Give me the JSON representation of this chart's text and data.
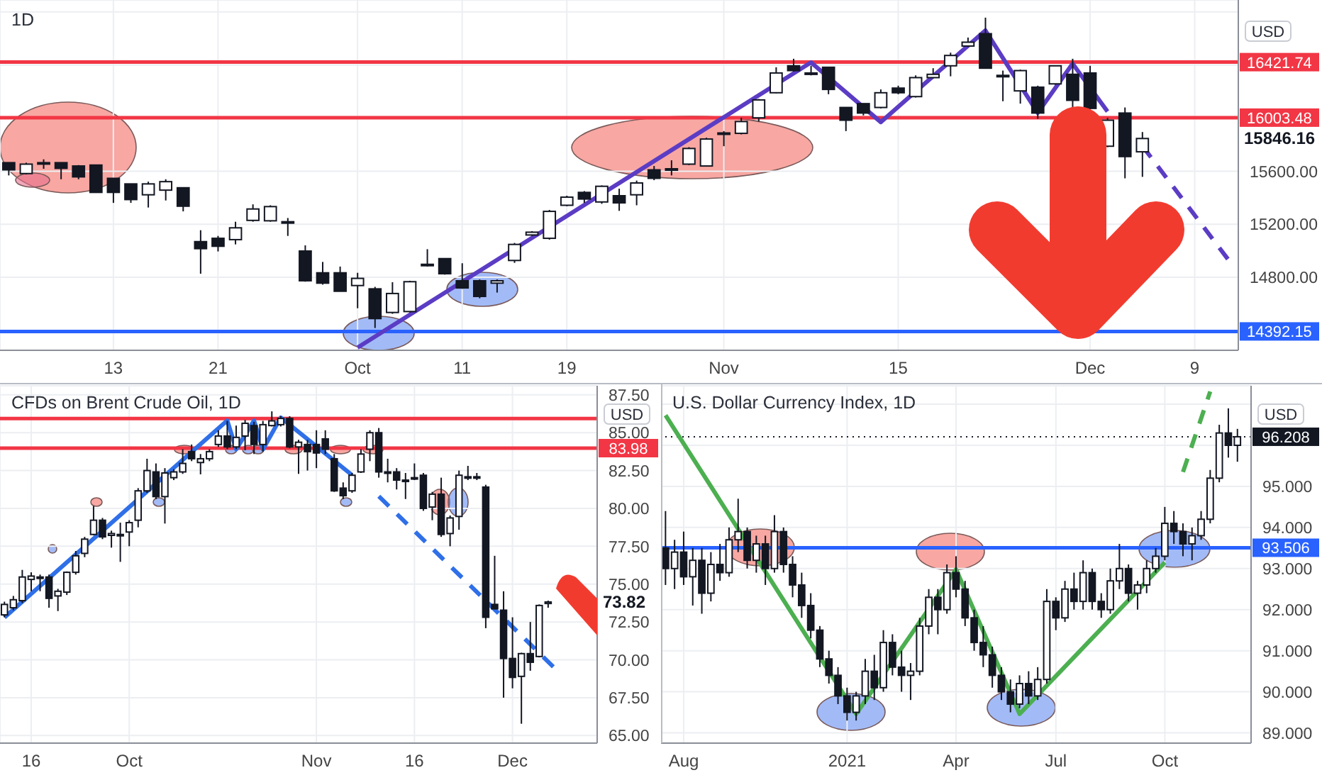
{
  "chart_data": [
    {
      "type": "candlestick",
      "title": "1D",
      "categories": [
        null,
        null,
        null,
        null,
        null,
        null,
        "13",
        null,
        null,
        null,
        null,
        null,
        "21",
        null,
        null,
        null,
        null,
        null,
        null,
        null,
        "Oct",
        null,
        null,
        null,
        null,
        null,
        "11",
        null,
        null,
        null,
        null,
        null,
        "19",
        null,
        null,
        null,
        null,
        null,
        null,
        null,
        null,
        "Nov",
        null,
        null,
        null,
        null,
        null,
        null,
        null,
        null,
        null,
        "15",
        null,
        null,
        null,
        null,
        null,
        null,
        null,
        null,
        null,
        null,
        "Dec",
        null,
        null,
        null,
        null,
        null,
        "9",
        null,
        null
      ],
      "ohlc": [
        [
          15664,
          15664,
          15568,
          15610
        ],
        [
          15582,
          15664,
          15575,
          15653
        ],
        [
          15664,
          15689,
          15618,
          15657
        ],
        [
          15664,
          15664,
          15539,
          15621
        ],
        [
          15639,
          15646,
          15539,
          15557
        ],
        [
          15646,
          15646,
          15440,
          15440
        ],
        [
          15546,
          15546,
          15361,
          15440
        ],
        [
          15504,
          15504,
          15361,
          15386
        ],
        [
          15422,
          15521,
          15326,
          15504
        ],
        [
          15457,
          15539,
          15379,
          15521
        ],
        [
          15475,
          15475,
          15297,
          15336
        ],
        [
          15069,
          15155,
          14827,
          15016
        ],
        [
          15094,
          15112,
          14995,
          15034
        ],
        [
          15084,
          15219,
          15048,
          15173
        ],
        [
          15229,
          15350,
          15219,
          15315
        ],
        [
          15226,
          15343,
          15219,
          15333
        ],
        [
          15219,
          15247,
          15112,
          15215
        ],
        [
          14998,
          15041,
          14767,
          14774
        ],
        [
          14834,
          14916,
          14745,
          14756
        ],
        [
          14834,
          14881,
          14695,
          14695
        ],
        [
          14738,
          14834,
          14567,
          14792
        ],
        [
          14713,
          14728,
          14418,
          14489
        ],
        [
          14535,
          14763,
          14525,
          14678
        ],
        [
          14542,
          14774,
          14535,
          14767
        ],
        [
          14898,
          15012,
          14881,
          14895
        ],
        [
          14941,
          14941,
          14820,
          14827
        ],
        [
          14774,
          14906,
          14713,
          14720
        ],
        [
          14774,
          14784,
          14642,
          14656
        ],
        [
          14756,
          14784,
          14685,
          14774
        ],
        [
          14927,
          15059,
          14909,
          15048
        ],
        [
          15119,
          15148,
          15112,
          15140
        ],
        [
          15094,
          15308,
          15084,
          15297
        ],
        [
          15343,
          15415,
          15336,
          15404
        ],
        [
          15440,
          15450,
          15361,
          15390
        ],
        [
          15368,
          15493,
          15354,
          15486
        ],
        [
          15415,
          15468,
          15301,
          15361
        ],
        [
          15422,
          15529,
          15343,
          15511
        ],
        [
          15610,
          15639,
          15532,
          15546
        ],
        [
          15618,
          15682,
          15568,
          15615
        ],
        [
          15653,
          15781,
          15646,
          15771
        ],
        [
          15639,
          15852,
          15639,
          15842
        ],
        [
          15888,
          15902,
          15788,
          15885
        ],
        [
          15885,
          16002,
          15877,
          15974
        ],
        [
          16002,
          16144,
          15974,
          16137
        ],
        [
          16191,
          16383,
          16187,
          16340
        ],
        [
          16394,
          16447,
          16351,
          16358
        ],
        [
          16340,
          16394,
          16322,
          16336
        ],
        [
          16383,
          16383,
          16180,
          16216
        ],
        [
          16080,
          16080,
          15902,
          15984
        ],
        [
          16109,
          16109,
          16020,
          16038
        ],
        [
          16080,
          16216,
          16073,
          16191
        ],
        [
          16226,
          16244,
          16180,
          16191
        ],
        [
          16162,
          16322,
          16155,
          16305
        ],
        [
          16305,
          16376,
          16305,
          16330
        ],
        [
          16394,
          16493,
          16315,
          16472
        ],
        [
          16543,
          16607,
          16536,
          16572
        ],
        [
          16636,
          16757,
          16376,
          16376
        ],
        [
          16322,
          16358,
          16127,
          16318
        ],
        [
          16205,
          16365,
          16109,
          16358
        ],
        [
          16233,
          16244,
          15995,
          16038
        ],
        [
          16258,
          16394,
          16251,
          16394
        ],
        [
          16330,
          16447,
          16080,
          16134
        ],
        [
          16340,
          16394,
          16066,
          16073
        ],
        [
          15788,
          16002,
          15781,
          15984
        ],
        [
          16038,
          16080,
          15546,
          15710
        ],
        [
          15746,
          15895,
          15557,
          15846.16
        ],
        null,
        null,
        null,
        null,
        null
      ],
      "series": [
        {
          "type": "line",
          "color": "#5b3cc4",
          "values": [
            null,
            null,
            null,
            null,
            null,
            null,
            null,
            null,
            null,
            null,
            null,
            null,
            null,
            null,
            null,
            null,
            null,
            null,
            null,
            null,
            14270,
            null,
            null,
            null,
            null,
            null,
            null,
            null,
            null,
            null,
            null,
            null,
            null,
            null,
            null,
            null,
            null,
            null,
            null,
            null,
            null,
            null,
            null,
            null,
            null,
            null,
            16420,
            null,
            null,
            null,
            15970,
            null,
            null,
            null,
            null,
            null,
            16660,
            null,
            null,
            16040,
            null,
            16410,
            null,
            16050,
            null,
            null,
            null,
            null,
            null,
            null,
            null
          ]
        },
        {
          "type": "line",
          "color": "#5b3cc4",
          "line_style": "dashed",
          "values": [
            null,
            null,
            null,
            null,
            null,
            null,
            null,
            null,
            null,
            null,
            null,
            null,
            null,
            null,
            null,
            null,
            null,
            null,
            null,
            null,
            null,
            null,
            null,
            null,
            null,
            null,
            null,
            null,
            null,
            null,
            null,
            null,
            null,
            null,
            null,
            null,
            null,
            null,
            null,
            null,
            null,
            null,
            null,
            null,
            null,
            null,
            null,
            null,
            null,
            null,
            null,
            null,
            null,
            null,
            null,
            null,
            null,
            null,
            null,
            null,
            null,
            null,
            null,
            null,
            null,
            15790,
            null,
            null,
            null,
            null,
            14920
          ]
        }
      ],
      "ylim": [
        14250,
        16890
      ],
      "yticks": [
        {
          "value": 14400,
          "label": null
        },
        {
          "value": 14800,
          "label": "14800.00"
        },
        {
          "value": 15200,
          "label": "15200.00"
        },
        {
          "value": 15600,
          "label": "15600.00"
        },
        {
          "value": 16000,
          "label": null
        },
        {
          "value": 16400,
          "label": null
        },
        {
          "value": 16800,
          "label": null
        }
      ],
      "ref_lines": [
        {
          "axis": "y",
          "value": 16421.74,
          "label": "16421.74",
          "color": "#f23645"
        },
        {
          "axis": "y",
          "value": 16003.48,
          "label": "16003.48",
          "color": "#f23645"
        },
        {
          "axis": "y",
          "value": 14392.15,
          "label": "14392.15",
          "color": "#2962ff"
        }
      ],
      "annotations": [
        "USD",
        "15846.16"
      ],
      "grid": true
    },
    {
      "type": "candlestick",
      "title": "CFDs on Brent Crude Oil, 1D",
      "categories": [
        null,
        null,
        null,
        "16",
        null,
        null,
        null,
        null,
        null,
        null,
        null,
        null,
        null,
        null,
        "Oct",
        null,
        null,
        null,
        null,
        null,
        null,
        null,
        null,
        null,
        null,
        null,
        null,
        null,
        null,
        null,
        null,
        null,
        null,
        null,
        null,
        "Nov",
        null,
        null,
        null,
        null,
        null,
        null,
        null,
        null,
        null,
        null,
        "16",
        null,
        null,
        null,
        null,
        null,
        null,
        null,
        null,
        null,
        null,
        "Dec",
        null,
        null,
        null,
        null,
        null,
        null,
        null,
        null,
        null
      ],
      "ohlc": [
        [
          72.97,
          73.84,
          72.81,
          73.66
        ],
        [
          73.44,
          74.22,
          73.28,
          73.97
        ],
        [
          73.91,
          75.94,
          73.75,
          75.47
        ],
        [
          75.31,
          75.78,
          74.53,
          75.53
        ],
        [
          75.47,
          75.63,
          74.53,
          75.44
        ],
        [
          75.47,
          75.63,
          73.44,
          74.06
        ],
        [
          74.22,
          74.69,
          73.22,
          74.53
        ],
        [
          74.47,
          75.84,
          74.28,
          75.78
        ],
        [
          75.78,
          77.19,
          75.63,
          76.87
        ],
        [
          77.03,
          78.12,
          76.78,
          77.97
        ],
        [
          78.28,
          80.16,
          78.22,
          79.22
        ],
        [
          79.22,
          79.37,
          77.97,
          78.12
        ],
        [
          78.22,
          78.53,
          77.41,
          78.34
        ],
        [
          78.25,
          79.06,
          76.47,
          78.28
        ],
        [
          78.44,
          79.22,
          77.5,
          79.06
        ],
        [
          79.22,
          81.34,
          78.75,
          81.16
        ],
        [
          81.16,
          83.28,
          81.03,
          82.5
        ],
        [
          82.41,
          82.97,
          80.62,
          80.78
        ],
        [
          80.78,
          82.66,
          79.0,
          82.34
        ],
        [
          82.03,
          82.59,
          81.87,
          82.41
        ],
        [
          82.41,
          83.91,
          82.28,
          82.97
        ],
        [
          83.75,
          84.22,
          83.12,
          83.28
        ],
        [
          83.03,
          83.59,
          82.25,
          83.28
        ],
        [
          83.28,
          83.91,
          83.12,
          83.75
        ],
        [
          84.22,
          85.16,
          84.06,
          84.78
        ],
        [
          84.78,
          85.78,
          83.91,
          84.06
        ],
        [
          84.06,
          85.47,
          83.91,
          84.69
        ],
        [
          84.78,
          85.84,
          83.84,
          85.62
        ],
        [
          85.47,
          85.72,
          83.59,
          84.22
        ],
        [
          84.22,
          85.78,
          83.75,
          85.53
        ],
        [
          85.47,
          86.41,
          85.41,
          85.78
        ],
        [
          85.53,
          86.09,
          85.41,
          85.94
        ],
        [
          85.94,
          86.09,
          83.97,
          84.06
        ],
        [
          84.06,
          84.53,
          82.28,
          84.37
        ],
        [
          84.22,
          84.53,
          82.5,
          83.75
        ],
        [
          84.22,
          85.16,
          82.66,
          83.66
        ],
        [
          84.59,
          85.16,
          83.59,
          83.91
        ],
        [
          83.28,
          83.59,
          81.09,
          81.16
        ],
        [
          81.34,
          81.72,
          80.62,
          80.84
        ],
        [
          81.16,
          82.34,
          81.03,
          82.19
        ],
        [
          82.41,
          83.91,
          82.34,
          83.59
        ],
        [
          83.91,
          85.16,
          83.12,
          85.0
        ],
        [
          85.0,
          85.31,
          82.03,
          82.41
        ],
        [
          82.41,
          83.28,
          81.72,
          82.38
        ],
        [
          82.41,
          82.66,
          81.25,
          81.87
        ],
        [
          81.87,
          82.34,
          80.62,
          81.84
        ],
        [
          82.03,
          82.97,
          81.87,
          82.0
        ],
        [
          82.19,
          82.34,
          79.84,
          80.0
        ],
        [
          80.09,
          81.09,
          79.22,
          80.94
        ],
        [
          80.94,
          82.03,
          78.12,
          78.28
        ],
        [
          78.34,
          79.53,
          77.5,
          79.37
        ],
        [
          79.47,
          82.5,
          78.59,
          82.19
        ],
        [
          82.09,
          82.81,
          81.87,
          82.06
        ],
        [
          82.09,
          82.34,
          81.87,
          82.06
        ],
        [
          81.41,
          81.56,
          72.09,
          72.81
        ],
        [
          73.66,
          76.87,
          73.34,
          73.37
        ],
        [
          73.28,
          74.53,
          67.5,
          70.09
        ],
        [
          70.09,
          72.81,
          68.12,
          68.84
        ],
        [
          68.91,
          70.47,
          65.78,
          70.41
        ],
        [
          70.41,
          72.5,
          69.28,
          69.84
        ],
        [
          70.22,
          73.66,
          70.16,
          73.59
        ],
        [
          73.72,
          73.91,
          73.44,
          73.82
        ],
        null,
        null,
        null,
        null,
        null
      ],
      "series": [
        {
          "type": "line",
          "color": "#2f6fe8",
          "values": [
            72.8,
            null,
            null,
            null,
            null,
            null,
            null,
            null,
            null,
            null,
            null,
            null,
            null,
            null,
            null,
            null,
            null,
            null,
            null,
            null,
            null,
            null,
            null,
            null,
            null,
            85.8,
            83.9,
            null,
            85.8,
            83.9,
            null,
            86.0,
            null,
            null,
            null,
            null,
            null,
            null,
            null,
            82.2,
            null,
            null,
            null,
            null,
            null,
            null,
            null,
            null,
            null,
            null,
            null,
            null,
            null,
            null,
            null,
            null,
            null,
            null,
            null,
            null,
            null,
            null,
            null,
            null,
            null,
            null,
            null
          ]
        },
        {
          "type": "line",
          "color": "#2f6fe8",
          "line_style": "dashed",
          "values": [
            null,
            null,
            null,
            null,
            null,
            null,
            null,
            null,
            null,
            null,
            null,
            null,
            null,
            null,
            null,
            null,
            null,
            null,
            null,
            null,
            null,
            null,
            null,
            null,
            null,
            null,
            null,
            null,
            null,
            null,
            null,
            null,
            null,
            null,
            null,
            null,
            null,
            null,
            null,
            null,
            null,
            null,
            80.8,
            null,
            null,
            null,
            null,
            null,
            null,
            null,
            null,
            null,
            null,
            null,
            null,
            null,
            null,
            null,
            null,
            null,
            null,
            null,
            69.3,
            null,
            null,
            null,
            null
          ]
        }
      ],
      "ylim": [
        64.5,
        88.1
      ],
      "yticks": [
        {
          "value": 65,
          "label": "65.00"
        },
        {
          "value": 67.5,
          "label": "67.50"
        },
        {
          "value": 70,
          "label": "70.00"
        },
        {
          "value": 72.5,
          "label": "72.50"
        },
        {
          "value": 75,
          "label": "75.00"
        },
        {
          "value": 77.5,
          "label": "77.50"
        },
        {
          "value": 80,
          "label": "80.00"
        },
        {
          "value": 82.5,
          "label": "82.50"
        },
        {
          "value": 85,
          "label": "85.00"
        },
        {
          "value": 87.5,
          "label": "87.50"
        }
      ],
      "ref_lines": [
        {
          "axis": "y",
          "value": 85.94,
          "label": null,
          "color": "#f23645"
        },
        {
          "axis": "y",
          "value": 83.98,
          "label": "83.98",
          "color": "#f23645"
        }
      ],
      "annotations": [
        "USD",
        "73.82"
      ],
      "grid": true
    },
    {
      "type": "candlestick",
      "title": "U.S. Dollar Currency Index, 1D",
      "categories": [
        null,
        null,
        "Aug",
        null,
        null,
        null,
        null,
        null,
        null,
        null,
        null,
        null,
        null,
        null,
        null,
        null,
        null,
        null,
        null,
        null,
        "2021",
        null,
        null,
        null,
        null,
        null,
        null,
        null,
        null,
        null,
        null,
        null,
        "Apr",
        null,
        null,
        null,
        null,
        null,
        null,
        null,
        null,
        null,
        null,
        "Jul",
        null,
        null,
        null,
        null,
        null,
        null,
        null,
        null,
        null,
        null,
        null,
        "Oct",
        null,
        null,
        null,
        null,
        null,
        null,
        null,
        null,
        null
      ],
      "ohlc": [
        [
          93.5,
          94.4,
          92.6,
          93.0
        ],
        [
          93.0,
          93.7,
          92.5,
          93.4
        ],
        [
          93.4,
          93.9,
          92.6,
          92.8
        ],
        [
          92.8,
          93.5,
          92.1,
          93.2
        ],
        [
          93.2,
          93.5,
          91.9,
          92.4
        ],
        [
          92.4,
          93.4,
          92.2,
          93.1
        ],
        [
          93.1,
          93.6,
          92.7,
          92.9
        ],
        [
          92.9,
          94.0,
          92.8,
          93.7
        ],
        [
          93.7,
          94.7,
          93.4,
          93.9
        ],
        [
          93.9,
          94.0,
          93.0,
          93.2
        ],
        [
          93.2,
          93.8,
          92.9,
          93.6
        ],
        [
          93.6,
          93.8,
          92.6,
          93.0
        ],
        [
          93.0,
          94.3,
          92.9,
          93.9
        ],
        [
          93.9,
          94.0,
          92.9,
          93.1
        ],
        [
          93.1,
          93.3,
          92.3,
          92.6
        ],
        [
          92.6,
          92.9,
          91.8,
          92.1
        ],
        [
          92.1,
          92.4,
          91.3,
          91.5
        ],
        [
          91.5,
          91.6,
          90.6,
          90.8
        ],
        [
          90.8,
          91.0,
          90.2,
          90.4
        ],
        [
          90.4,
          90.6,
          89.7,
          89.9
        ],
        [
          89.9,
          90.1,
          89.3,
          89.5
        ],
        [
          89.5,
          90.0,
          89.3,
          89.9
        ],
        [
          89.9,
          90.8,
          89.7,
          90.5
        ],
        [
          90.5,
          90.9,
          89.8,
          90.1
        ],
        [
          90.1,
          91.5,
          90.0,
          91.2
        ],
        [
          91.2,
          91.4,
          90.4,
          90.6
        ],
        [
          90.6,
          91.0,
          90.0,
          90.4
        ],
        [
          90.4,
          90.7,
          89.8,
          90.5
        ],
        [
          90.5,
          91.8,
          90.4,
          91.6
        ],
        [
          91.6,
          92.5,
          91.4,
          92.3
        ],
        [
          92.3,
          92.5,
          91.4,
          92.0
        ],
        [
          92.0,
          93.1,
          91.9,
          92.9
        ],
        [
          92.9,
          93.3,
          92.3,
          92.5
        ],
        [
          92.5,
          92.7,
          91.6,
          91.8
        ],
        [
          91.8,
          92.0,
          91.0,
          91.2
        ],
        [
          91.2,
          91.6,
          90.6,
          90.9
        ],
        [
          90.9,
          91.1,
          90.1,
          90.4
        ],
        [
          90.4,
          90.6,
          89.8,
          90.0
        ],
        [
          90.0,
          90.3,
          89.5,
          89.7
        ],
        [
          89.7,
          90.4,
          89.6,
          90.2
        ],
        [
          90.2,
          90.5,
          89.7,
          89.9
        ],
        [
          89.9,
          90.6,
          89.8,
          90.3
        ],
        [
          90.3,
          92.5,
          90.2,
          92.2
        ],
        [
          92.2,
          92.3,
          91.5,
          91.8
        ],
        [
          91.8,
          92.7,
          91.7,
          92.5
        ],
        [
          92.5,
          92.9,
          92.0,
          92.2
        ],
        [
          92.2,
          93.2,
          92.0,
          92.9
        ],
        [
          92.9,
          93.0,
          92.0,
          92.2
        ],
        [
          92.2,
          92.4,
          91.8,
          92.0
        ],
        [
          92.0,
          93.0,
          91.9,
          92.7
        ],
        [
          92.7,
          93.6,
          92.5,
          93.0
        ],
        [
          93.0,
          93.1,
          92.2,
          92.4
        ],
        [
          92.4,
          92.7,
          92.0,
          92.6
        ],
        [
          92.6,
          93.2,
          92.4,
          93.0
        ],
        [
          93.0,
          93.5,
          92.9,
          93.3
        ],
        [
          93.3,
          94.5,
          93.2,
          94.1
        ],
        [
          94.1,
          94.4,
          93.6,
          93.9
        ],
        [
          93.9,
          94.1,
          93.3,
          93.6
        ],
        [
          93.6,
          94.0,
          93.2,
          93.8
        ],
        [
          93.8,
          94.4,
          93.7,
          94.2
        ],
        [
          94.2,
          95.4,
          94.1,
          95.2
        ],
        [
          95.2,
          96.5,
          95.1,
          96.3
        ],
        [
          96.3,
          96.9,
          95.7,
          96.0
        ],
        [
          96.0,
          96.4,
          95.6,
          96.208
        ],
        null
      ],
      "series": [
        {
          "type": "line",
          "color": "#4caf50",
          "values": [
            96.73,
            null,
            null,
            null,
            null,
            null,
            null,
            null,
            null,
            null,
            null,
            null,
            null,
            null,
            null,
            null,
            null,
            null,
            null,
            null,
            null,
            89.46,
            null,
            null,
            null,
            null,
            null,
            null,
            null,
            null,
            null,
            null,
            92.98,
            null,
            null,
            null,
            null,
            null,
            null,
            89.46,
            null,
            null,
            null,
            null,
            null,
            null,
            null,
            null,
            null,
            null,
            null,
            null,
            null,
            null,
            null,
            93.15,
            null,
            null,
            null,
            null,
            null,
            null,
            null,
            null,
            null
          ]
        },
        {
          "type": "line",
          "color": "#4caf50",
          "line_style": "dashed",
          "values": [
            null,
            null,
            null,
            null,
            null,
            null,
            null,
            null,
            null,
            null,
            null,
            null,
            null,
            null,
            null,
            null,
            null,
            null,
            null,
            null,
            null,
            null,
            null,
            null,
            null,
            null,
            null,
            null,
            null,
            null,
            null,
            null,
            null,
            null,
            null,
            null,
            null,
            null,
            null,
            null,
            null,
            null,
            null,
            null,
            null,
            null,
            null,
            null,
            null,
            null,
            null,
            null,
            null,
            null,
            null,
            null,
            null,
            95.35,
            null,
            null,
            97.31,
            null,
            null,
            null,
            null
          ]
        }
      ],
      "ylim": [
        88.75,
        97.45
      ],
      "yticks": [
        {
          "value": 89,
          "label": "89.000"
        },
        {
          "value": 90,
          "label": "90.000"
        },
        {
          "value": 91,
          "label": "91.000"
        },
        {
          "value": 92,
          "label": "92.000"
        },
        {
          "value": 93,
          "label": "93.000"
        },
        {
          "value": 94,
          "label": "94.000"
        },
        {
          "value": 95,
          "label": "95.000"
        },
        {
          "value": 96,
          "label": null
        },
        {
          "value": 97,
          "label": null
        }
      ],
      "ref_lines": [
        {
          "axis": "y",
          "value": 93.506,
          "label": "93.506",
          "color": "#2962ff"
        },
        {
          "axis": "y",
          "value": 96.208,
          "label": "96.208",
          "color": "#131722",
          "line_style": "dotted"
        }
      ],
      "annotations": [
        "USD"
      ],
      "grid": true
    }
  ]
}
